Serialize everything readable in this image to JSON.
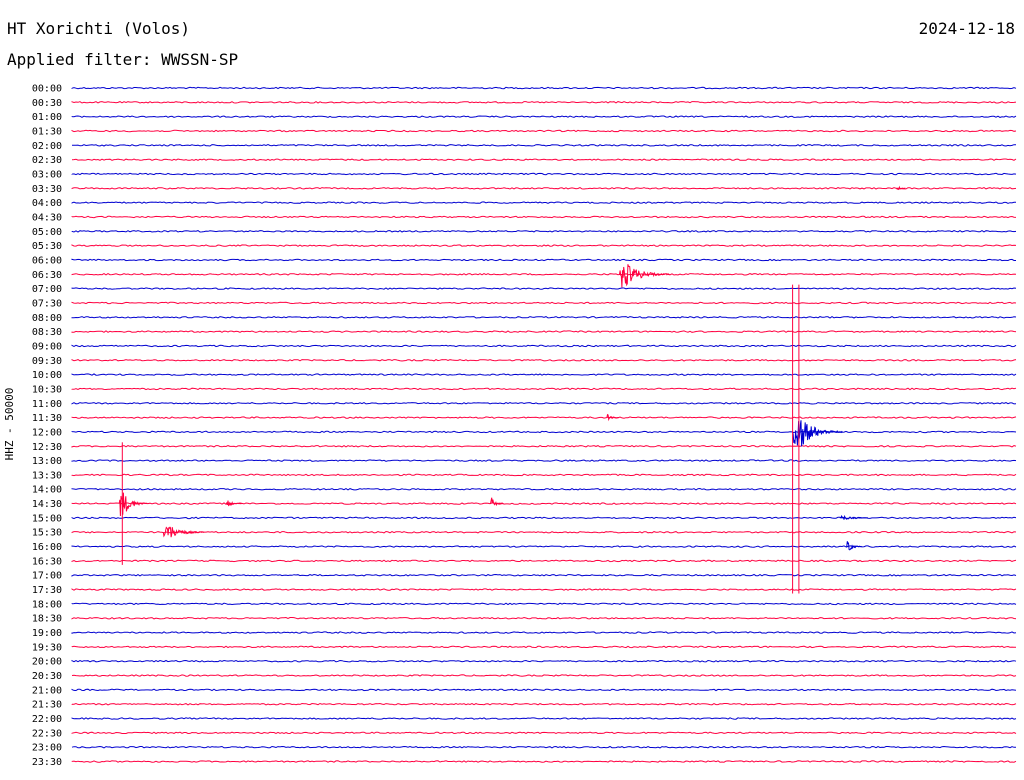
{
  "header": {
    "station": "HT Xorichti (Volos)",
    "date": "2024-12-18",
    "filter": "Applied filter: WWSSN-SP"
  },
  "colors": {
    "trace_a": "#0000d0",
    "trace_b": "#ff0040",
    "background": "#ffffff",
    "text": "#000000"
  },
  "chart_data": {
    "type": "line",
    "ylabel": "HHZ - 50000",
    "xlim_minutes": [
      0,
      30
    ],
    "row_ticks": [
      "00:00",
      "00:30",
      "01:00",
      "01:30",
      "02:00",
      "02:30",
      "03:00",
      "03:30",
      "04:00",
      "04:30",
      "05:00",
      "05:30",
      "06:00",
      "06:30",
      "07:00",
      "07:30",
      "08:00",
      "08:30",
      "09:00",
      "09:30",
      "10:00",
      "10:30",
      "11:00",
      "11:30",
      "12:00",
      "12:30",
      "13:00",
      "13:30",
      "14:00",
      "14:30",
      "15:00",
      "15:30",
      "16:00",
      "16:30",
      "17:00",
      "17:30",
      "18:00",
      "18:30",
      "19:00",
      "19:30",
      "20:00",
      "20:30",
      "21:00",
      "21:30",
      "22:00",
      "22:30",
      "23:00",
      "23:30"
    ],
    "row_colors": [
      "trace_a",
      "trace_b"
    ],
    "grid": false,
    "events": [
      {
        "row": "06:30",
        "minute": 17.4,
        "amplitude": 20,
        "duration_min": 1.6
      },
      {
        "row": "12:00",
        "minute": 22.9,
        "amplitude": 30,
        "duration_min": 1.6
      },
      {
        "row": "14:30",
        "minute": 1.5,
        "amplitude": 22,
        "duration_min": 0.9
      },
      {
        "row": "15:30",
        "minute": 2.9,
        "amplitude": 14,
        "duration_min": 1.3
      },
      {
        "row": "15:00",
        "minute": 24.4,
        "amplitude": 4,
        "duration_min": 0.9
      },
      {
        "row": "16:00",
        "minute": 24.6,
        "amplitude": 10,
        "duration_min": 0.5
      },
      {
        "row": "14:30",
        "minute": 13.3,
        "amplitude": 9,
        "duration_min": 0.4
      },
      {
        "row": "14:30",
        "minute": 4.9,
        "amplitude": 5,
        "duration_min": 0.5
      },
      {
        "row": "11:30",
        "minute": 17.0,
        "amplitude": 4,
        "duration_min": 0.4
      },
      {
        "row": "03:30",
        "minute": 26.2,
        "amplitude": 6,
        "duration_min": 0.3
      }
    ],
    "spikes": [
      {
        "start_row": "07:00",
        "end_row": "17:30",
        "minute": 22.9
      },
      {
        "start_row": "07:00",
        "end_row": "17:30",
        "minute": 23.1
      },
      {
        "start_row": "12:30",
        "end_row": "16:30",
        "minute": 1.6
      }
    ]
  }
}
